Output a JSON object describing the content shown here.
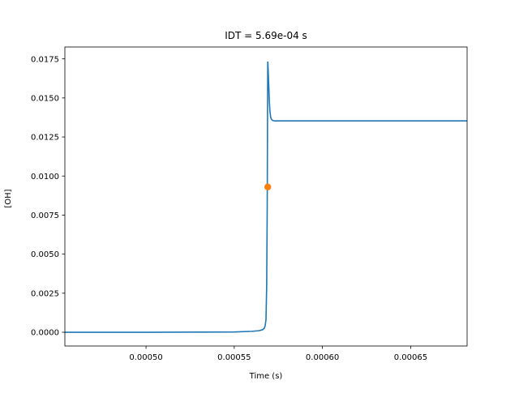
{
  "chart_data": {
    "type": "line",
    "title": "IDT = 5.69e-04 s",
    "xlabel": "Time (s)",
    "ylabel": "[OH]",
    "xlim": [
      0.000454,
      0.000682
    ],
    "ylim": [
      -0.00088,
      0.01826
    ],
    "xticks": [
      0.0005,
      0.00055,
      0.0006,
      0.00065
    ],
    "xtick_labels": [
      "0.00050",
      "0.00055",
      "0.00060",
      "0.00065"
    ],
    "yticks": [
      0.0,
      0.0025,
      0.005,
      0.0075,
      0.01,
      0.0125,
      0.015,
      0.0175
    ],
    "ytick_labels": [
      "0.0000",
      "0.0025",
      "0.0050",
      "0.0075",
      "0.0100",
      "0.0125",
      "0.0150",
      "0.0175"
    ],
    "grid": false,
    "series": [
      {
        "color": "#1f77b4",
        "x": [
          0.000454,
          0.0005,
          0.00053,
          0.00055,
          0.00056,
          0.000564,
          0.000566,
          0.000567,
          0.0005675,
          0.000568,
          0.0005684,
          0.0005687,
          0.0005689,
          0.000569,
          0.0005691,
          0.0005693,
          0.0005696,
          0.0005699,
          0.0005702,
          0.0005706,
          0.000571,
          0.0005716,
          0.0005723,
          0.000573,
          0.00058,
          0.00062,
          0.00066,
          0.000682
        ],
        "y": [
          0.0,
          0.0,
          1e-05,
          2e-05,
          6e-05,
          0.0001,
          0.00016,
          0.00025,
          0.0004,
          0.0008,
          0.003,
          0.008,
          0.0145,
          0.0173,
          0.0172,
          0.0166,
          0.0157,
          0.0148,
          0.0142,
          0.0138,
          0.01365,
          0.01357,
          0.01354,
          0.01353,
          0.01353,
          0.01353,
          0.01353,
          0.01353
        ]
      }
    ],
    "markers": [
      {
        "x": 0.000569,
        "y": 0.0093,
        "color": "#ff7f0e"
      }
    ]
  }
}
